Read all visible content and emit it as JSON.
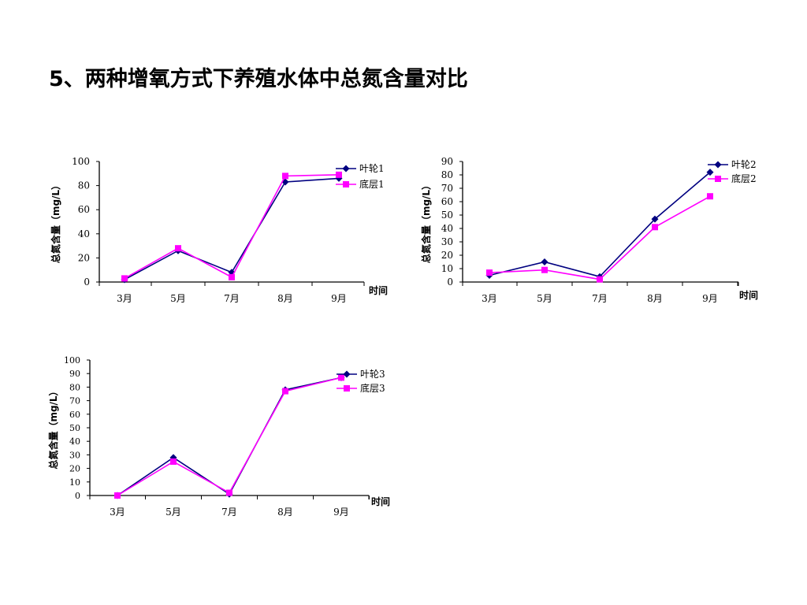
{
  "page": {
    "title": "5、两种增氧方式下养殖水体中总氮含量对比"
  },
  "chart_data": [
    {
      "type": "line",
      "categories": [
        "3月",
        "5月",
        "7月",
        "8月",
        "9月"
      ],
      "series": [
        {
          "name": "叶轮1",
          "values": [
            2,
            26,
            8,
            83,
            86
          ],
          "color": "#000080",
          "marker": "diamond"
        },
        {
          "name": "底层1",
          "values": [
            3,
            28,
            4,
            88,
            89
          ],
          "color": "#FF00FF",
          "marker": "square"
        }
      ],
      "xlabel": "时间",
      "ylabel": "总氮含量（mg/L）",
      "ylim": [
        0,
        100
      ],
      "yticks": [
        0,
        20,
        40,
        60,
        80,
        100
      ],
      "grid": false,
      "legend": "top-right"
    },
    {
      "type": "line",
      "categories": [
        "3月",
        "5月",
        "7月",
        "8月",
        "9月"
      ],
      "series": [
        {
          "name": "叶轮2",
          "values": [
            5,
            15,
            4,
            47,
            82
          ],
          "color": "#000080",
          "marker": "diamond"
        },
        {
          "name": "底层2",
          "values": [
            7,
            9,
            2,
            41,
            64
          ],
          "color": "#FF00FF",
          "marker": "square"
        }
      ],
      "xlabel": "时间",
      "ylabel": "总氮含量（mg/L）",
      "ylim": [
        0,
        90
      ],
      "yticks": [
        0,
        10,
        20,
        30,
        40,
        50,
        60,
        70,
        80,
        90
      ],
      "grid": false,
      "legend": "top-right"
    },
    {
      "type": "line",
      "categories": [
        "3月",
        "5月",
        "7月",
        "8月",
        "9月"
      ],
      "series": [
        {
          "name": "叶轮3",
          "values": [
            0,
            28,
            1,
            78,
            87
          ],
          "color": "#000080",
          "marker": "diamond"
        },
        {
          "name": "底层3",
          "values": [
            0,
            25,
            2,
            77,
            87
          ],
          "color": "#FF00FF",
          "marker": "square"
        }
      ],
      "xlabel": "时间",
      "ylabel": "总氮含量（mg/L）",
      "ylim": [
        0,
        100
      ],
      "yticks": [
        0,
        10,
        20,
        30,
        40,
        50,
        60,
        70,
        80,
        90,
        100
      ],
      "grid": false,
      "legend": "top-right"
    }
  ]
}
